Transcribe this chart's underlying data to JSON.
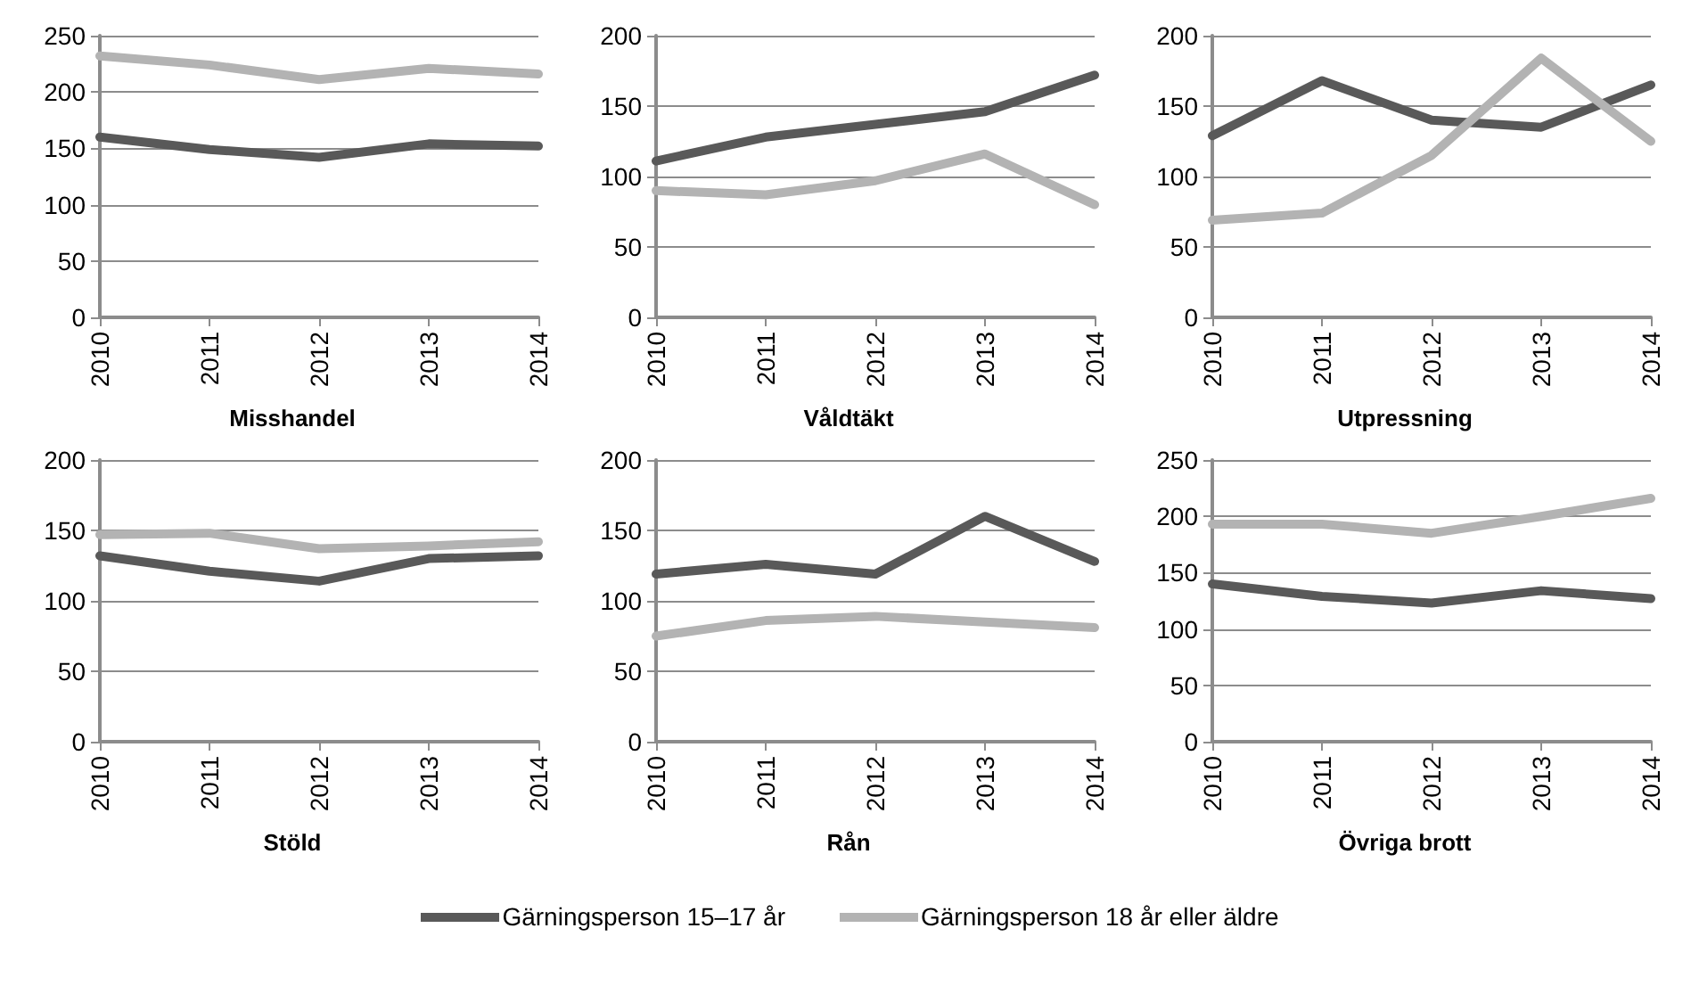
{
  "chart_data": [
    {
      "type": "line",
      "title": "Misshandel",
      "categories": [
        "2010",
        "2011",
        "2012",
        "2013",
        "2014"
      ],
      "ylim": [
        0,
        250
      ],
      "yticks": [
        0,
        50,
        100,
        150,
        200,
        250
      ],
      "grid": "y",
      "marker": "none",
      "legend": "bottom",
      "series": [
        {
          "name": "Gärningsperson 15–17 år",
          "color": "#595959",
          "values": [
            160,
            149,
            142,
            154,
            152
          ]
        },
        {
          "name": "Gärningsperson 18 år eller äldre",
          "color": "#b3b3b3",
          "values": [
            232,
            224,
            211,
            221,
            216
          ]
        }
      ]
    },
    {
      "type": "line",
      "title": "Våldtäkt",
      "categories": [
        "2010",
        "2011",
        "2012",
        "2013",
        "2014"
      ],
      "ylim": [
        0,
        200
      ],
      "yticks": [
        0,
        50,
        100,
        150,
        200
      ],
      "grid": "y",
      "marker": "none",
      "series": [
        {
          "color": "#595959",
          "values": [
            111,
            128,
            137,
            146,
            172
          ]
        },
        {
          "color": "#b3b3b3",
          "values": [
            90,
            87,
            97,
            116,
            80
          ]
        }
      ]
    },
    {
      "type": "line",
      "title": "Utpressning",
      "categories": [
        "2010",
        "2011",
        "2012",
        "2013",
        "2014"
      ],
      "ylim": [
        0,
        200
      ],
      "yticks": [
        0,
        50,
        100,
        150,
        200
      ],
      "grid": "y",
      "marker": "none",
      "series": [
        {
          "color": "#595959",
          "values": [
            129,
            168,
            140,
            135,
            165
          ]
        },
        {
          "color": "#b3b3b3",
          "values": [
            69,
            74,
            115,
            184,
            125
          ]
        }
      ]
    },
    {
      "type": "line",
      "title": "Stöld",
      "categories": [
        "2010",
        "2011",
        "2012",
        "2013",
        "2014"
      ],
      "ylim": [
        0,
        200
      ],
      "yticks": [
        0,
        50,
        100,
        150,
        200
      ],
      "grid": "y",
      "marker": "none",
      "series": [
        {
          "color": "#595959",
          "values": [
            132,
            121,
            114,
            130,
            132
          ]
        },
        {
          "color": "#b3b3b3",
          "values": [
            147,
            148,
            137,
            139,
            142
          ]
        }
      ]
    },
    {
      "type": "line",
      "title": "Rån",
      "categories": [
        "2010",
        "2011",
        "2012",
        "2013",
        "2014"
      ],
      "ylim": [
        0,
        200
      ],
      "yticks": [
        0,
        50,
        100,
        150,
        200
      ],
      "grid": "y",
      "marker": "none",
      "series": [
        {
          "color": "#595959",
          "values": [
            119,
            126,
            119,
            160,
            128
          ]
        },
        {
          "color": "#b3b3b3",
          "values": [
            75,
            86,
            89,
            85,
            81
          ]
        }
      ]
    },
    {
      "type": "line",
      "title": "Övriga brott",
      "categories": [
        "2010",
        "2011",
        "2012",
        "2013",
        "2014"
      ],
      "ylim": [
        0,
        250
      ],
      "yticks": [
        0,
        50,
        100,
        150,
        200,
        250
      ],
      "grid": "y",
      "marker": "none",
      "series": [
        {
          "color": "#595959",
          "values": [
            140,
            129,
            123,
            134,
            127
          ]
        },
        {
          "color": "#b3b3b3",
          "values": [
            193,
            193,
            185,
            200,
            216
          ]
        }
      ]
    }
  ]
}
